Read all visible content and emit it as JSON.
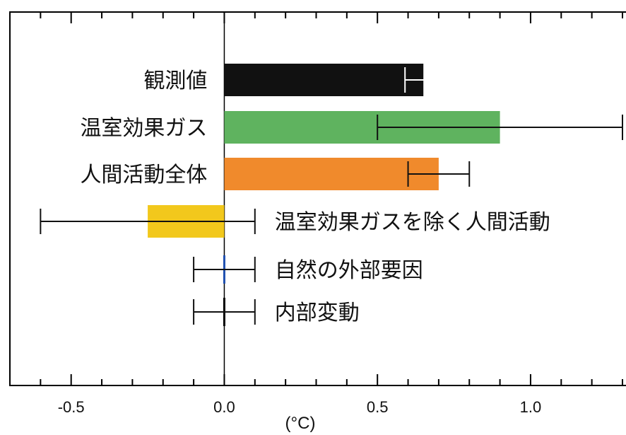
{
  "chart_data": {
    "type": "bar",
    "orientation": "horizontal",
    "xlabel": "(°C)",
    "xlim": [
      -0.7,
      1.33
    ],
    "x_ticks": [
      -0.5,
      0.0,
      0.5,
      1.0
    ],
    "x_tick_labels": [
      "-0.5",
      "0.0",
      "0.5",
      "1.0"
    ],
    "minor_tick_step": 0.1,
    "grid": false,
    "categories": [
      "観測値",
      "温室効果ガス",
      "人間活動全体",
      "温室効果ガスを除く人間活動",
      "自然の外部要因",
      "内部変動"
    ],
    "label_side": [
      "left",
      "left",
      "left",
      "right",
      "right",
      "right"
    ],
    "values": [
      0.65,
      0.9,
      0.7,
      -0.25,
      0.0,
      0.0
    ],
    "error_low": [
      0.59,
      0.5,
      0.6,
      -0.6,
      -0.1,
      -0.1
    ],
    "error_high": [
      0.7,
      1.3,
      0.8,
      0.1,
      0.1,
      0.1
    ],
    "colors": [
      "#111111",
      "#5fb35f",
      "#f08a2c",
      "#f2c81c",
      "#1f4fb0",
      "#000000"
    ],
    "error_bar_colors": [
      "#ffffff",
      "#111111",
      "#111111",
      "#111111",
      "#111111",
      "#111111"
    ]
  }
}
